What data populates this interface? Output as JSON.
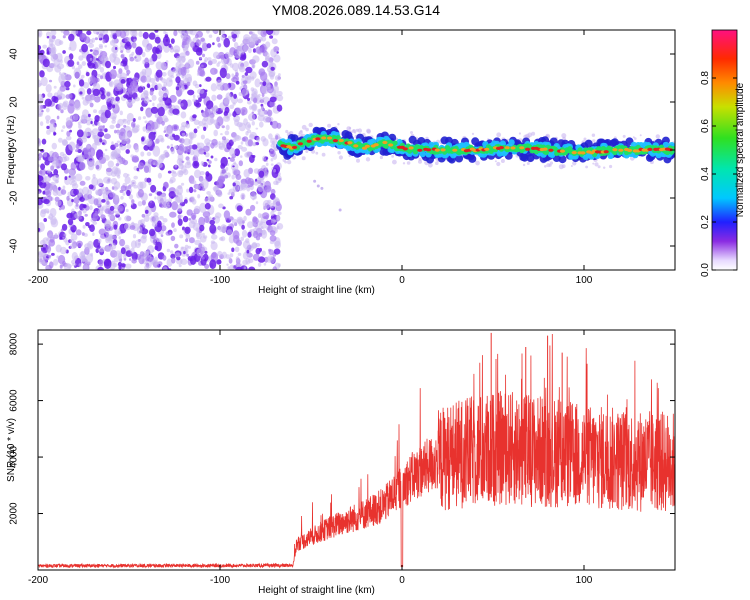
{
  "title": "YM08.2026.089.14.53.G14",
  "colors": {
    "signal_line": "#e8322e",
    "spec_low": "#c9b6f0",
    "spec_mid": "#6a1fe8",
    "trace_outer": "#2020d0",
    "trace_inner": "#20c0ff",
    "trace_core": "#20e060",
    "trace_peak": "#e02020"
  },
  "colorbar": {
    "label": "Normalized spectral amplitude",
    "ticks": [
      "0.0",
      "0.2",
      "0.4",
      "0.6",
      "0.8"
    ],
    "tick_values": [
      0.0,
      0.2,
      0.4,
      0.6,
      0.8
    ],
    "range": [
      0,
      1
    ]
  },
  "chart_data": [
    {
      "type": "heatmap",
      "name": "spectrogram",
      "xlabel": "Height of straight line (km)",
      "ylabel": "Frequency (Hz)",
      "xlim": [
        -200,
        150
      ],
      "ylim": [
        -50,
        50
      ],
      "x_ticks": [
        -200,
        -100,
        0,
        100
      ],
      "x_tick_labels": [
        "-200",
        "-100",
        "0",
        "100"
      ],
      "y_ticks": [
        -40,
        -20,
        0,
        20,
        40
      ],
      "y_tick_labels": [
        "-40",
        "-20",
        "0",
        "20",
        "40"
      ],
      "noise_region_x": [
        -200,
        -67
      ],
      "trace_region_x": [
        -67,
        150
      ],
      "trace_center_points": [
        [
          -67,
          2
        ],
        [
          -60,
          1
        ],
        [
          -50,
          4
        ],
        [
          -40,
          5
        ],
        [
          -30,
          3
        ],
        [
          -20,
          1
        ],
        [
          -10,
          3
        ],
        [
          0,
          1
        ],
        [
          10,
          0
        ],
        [
          20,
          0
        ],
        [
          40,
          0
        ],
        [
          60,
          1
        ],
        [
          80,
          0
        ],
        [
          100,
          -1
        ],
        [
          120,
          0
        ],
        [
          150,
          0
        ]
      ]
    },
    {
      "type": "line",
      "name": "snr",
      "xlabel": "Height of straight line (km)",
      "ylabel": "SNR (10 * v/v)",
      "xlim": [
        -200,
        150
      ],
      "ylim": [
        0,
        8500
      ],
      "x_ticks": [
        -200,
        -100,
        0,
        100
      ],
      "x_tick_labels": [
        "-200",
        "-100",
        "0",
        "100"
      ],
      "y_ticks": [
        2000,
        4000,
        6000,
        8000
      ],
      "y_tick_labels": [
        "2000",
        "4000",
        "6000",
        "8000"
      ],
      "envelope": [
        [
          -200,
          150
        ],
        [
          -60,
          160
        ],
        [
          -58,
          900
        ],
        [
          -40,
          1500
        ],
        [
          -20,
          2000
        ],
        [
          -10,
          2300
        ],
        [
          0,
          3000
        ],
        [
          10,
          3500
        ],
        [
          20,
          3900
        ],
        [
          30,
          4100
        ],
        [
          40,
          4200
        ],
        [
          50,
          4300
        ],
        [
          60,
          4300
        ],
        [
          80,
          4200
        ],
        [
          100,
          4000
        ],
        [
          120,
          3900
        ],
        [
          150,
          3800
        ]
      ],
      "peak_annotations": [
        [
          49,
          8400
        ],
        [
          80,
          8300
        ],
        [
          68,
          7900
        ],
        [
          88,
          7700
        ]
      ]
    }
  ]
}
